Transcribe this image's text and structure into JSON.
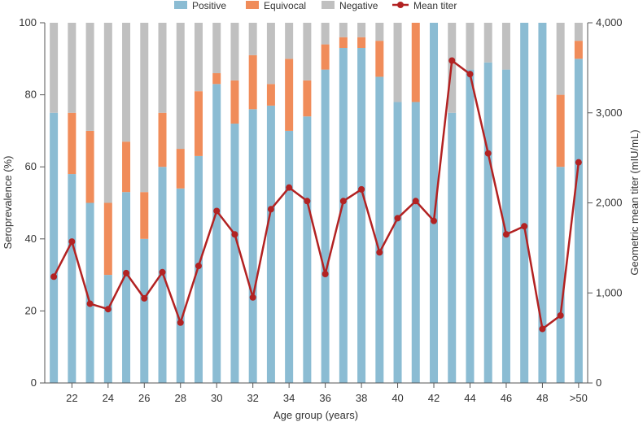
{
  "chart_data": {
    "type": "bar",
    "stacked": true,
    "title": "",
    "xlabel": "Age group (years)",
    "ylabel": "Seroprevalence (%)",
    "y2label": "Geometric mean titer (mIU/mL)",
    "ylim": [
      0,
      100
    ],
    "y2lim": [
      0,
      4000
    ],
    "yticks": [
      0,
      20,
      40,
      60,
      80,
      100
    ],
    "y2ticks": [
      "0",
      "1,000",
      "2,000",
      "3,000",
      "4,000"
    ],
    "y2tick_values": [
      0,
      1000,
      2000,
      3000,
      4000
    ],
    "categories": [
      "21",
      "22",
      "23",
      "24",
      "25",
      "26",
      "27",
      "28",
      "29",
      "30",
      "31",
      "32",
      "33",
      "34",
      "35",
      "36",
      "37",
      "38",
      "39",
      "40",
      "41",
      "42",
      "43",
      "44",
      "45",
      "46",
      "47",
      "48",
      "49",
      ">50"
    ],
    "xtick_labels": [
      "22",
      "24",
      "26",
      "28",
      "30",
      "32",
      "34",
      "36",
      "38",
      "40",
      "42",
      "44",
      "46",
      "48",
      ">50"
    ],
    "xtick_categories": [
      "22",
      "24",
      "26",
      "28",
      "30",
      "32",
      "34",
      "36",
      "38",
      "40",
      "42",
      "44",
      "46",
      "48",
      ">50"
    ],
    "legend": {
      "placement": "top-center",
      "items": [
        {
          "label": "Positive",
          "kind": "box",
          "color": "#8bbcd3"
        },
        {
          "label": "Equivocal",
          "kind": "box",
          "color": "#f08c5a"
        },
        {
          "label": "Negative",
          "kind": "box",
          "color": "#c0c0c0"
        },
        {
          "label": "Mean titer",
          "kind": "line",
          "color": "#b22222"
        }
      ]
    },
    "series": [
      {
        "name": "Positive",
        "color": "#8bbcd3",
        "values": [
          75,
          58,
          50,
          30,
          53,
          40,
          60,
          54,
          63,
          83,
          72,
          76,
          77,
          70,
          74,
          87,
          93,
          93,
          85,
          78,
          78,
          100,
          75,
          87,
          89,
          87,
          100,
          100,
          60,
          90
        ]
      },
      {
        "name": "Equivocal",
        "color": "#f08c5a",
        "values": [
          0,
          17,
          20,
          20,
          14,
          13,
          15,
          11,
          18,
          3,
          12,
          15,
          6,
          20,
          10,
          7,
          3,
          3,
          10,
          0,
          22,
          0,
          0,
          0,
          0,
          0,
          0,
          0,
          20,
          5
        ]
      },
      {
        "name": "Negative",
        "color": "#c0c0c0",
        "values": [
          25,
          25,
          30,
          50,
          33,
          47,
          25,
          35,
          19,
          14,
          16,
          9,
          17,
          10,
          16,
          6,
          4,
          4,
          5,
          22,
          0,
          0,
          25,
          13,
          11,
          13,
          0,
          0,
          20,
          5
        ]
      },
      {
        "name": "Mean titer",
        "color": "#b22222",
        "axis": "right",
        "kind": "line",
        "values": [
          1180,
          1570,
          880,
          820,
          1220,
          940,
          1230,
          670,
          1300,
          1910,
          1650,
          950,
          1930,
          2170,
          2020,
          1210,
          2020,
          2150,
          1450,
          1830,
          2020,
          1800,
          3580,
          3430,
          2550,
          1650,
          1740,
          600,
          750,
          2450
        ]
      }
    ]
  }
}
